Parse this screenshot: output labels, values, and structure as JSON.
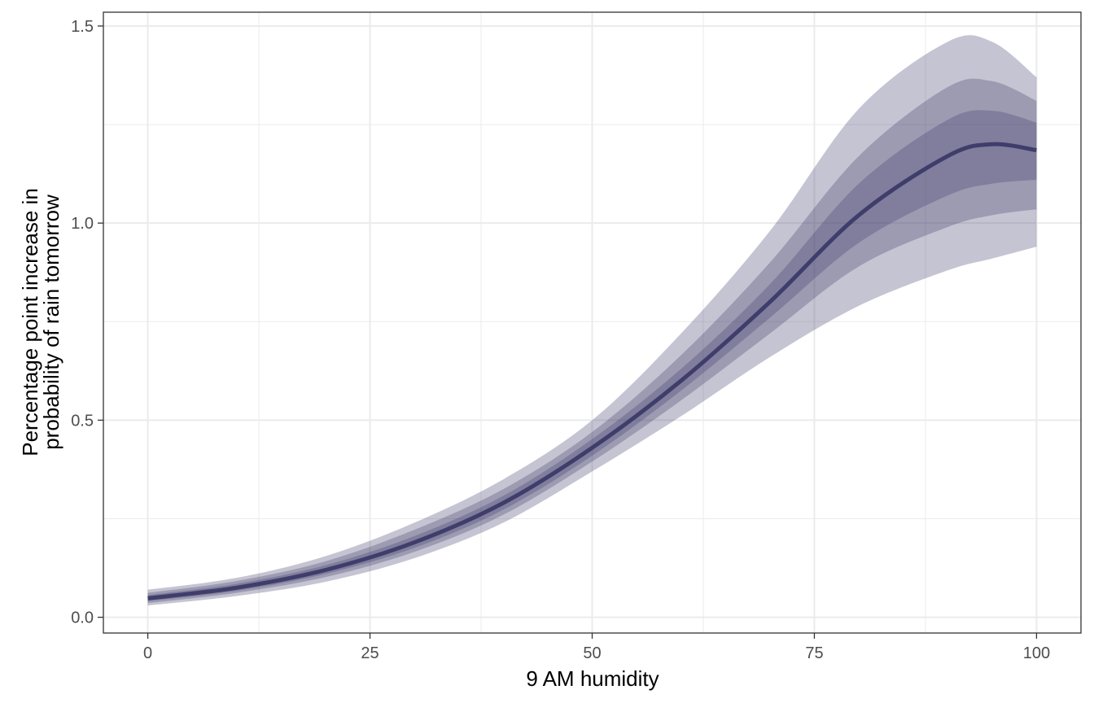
{
  "chart_data": {
    "type": "line",
    "title": "",
    "xlabel": "9 AM humidity",
    "ylabel_lines": [
      "Percentage point increase in",
      "probability of rain tomorrow"
    ],
    "xlim": [
      -5,
      105
    ],
    "ylim": [
      -0.04,
      1.535
    ],
    "x_ticks": [
      0,
      25,
      50,
      75,
      100
    ],
    "x_tick_labels": [
      "0",
      "25",
      "50",
      "75",
      "100"
    ],
    "y_ticks": [
      0,
      0.5,
      1,
      1.5
    ],
    "y_tick_labels": [
      "0.0",
      "0.5",
      "1.0",
      "1.5"
    ],
    "x_minor_ticks": [
      12.5,
      37.5,
      62.5,
      87.5
    ],
    "y_minor_ticks": [
      0.25,
      0.75,
      1.25
    ],
    "grid": true,
    "legend": "none",
    "colors": {
      "line": "#3f3d6b",
      "band": "#3f3d6b",
      "grid": "#ebebeb",
      "panel_border": "#333333"
    },
    "series": [
      {
        "x": [
          0,
          10,
          20,
          30,
          40,
          50,
          60,
          70,
          80,
          90,
          95,
          100
        ],
        "y": [
          0.048,
          0.075,
          0.12,
          0.19,
          0.29,
          0.43,
          0.6,
          0.8,
          1.02,
          1.17,
          1.2,
          1.185
        ],
        "bands": [
          {
            "level": "outer",
            "lower": [
              0.03,
              0.054,
              0.09,
              0.15,
              0.24,
              0.37,
              0.51,
              0.66,
              0.79,
              0.88,
              0.91,
              0.94
            ],
            "upper": [
              0.07,
              0.1,
              0.155,
              0.24,
              0.35,
              0.5,
              0.72,
              0.98,
              1.29,
              1.46,
              1.46,
              1.37
            ]
          },
          {
            "level": "middle",
            "lower": [
              0.036,
              0.062,
              0.102,
              0.166,
              0.26,
              0.395,
              0.55,
              0.72,
              0.89,
              0.99,
              1.02,
              1.035
            ],
            "upper": [
              0.062,
              0.092,
              0.142,
              0.222,
              0.325,
              0.47,
              0.665,
              0.9,
              1.17,
              1.345,
              1.36,
              1.31
            ]
          },
          {
            "level": "inner",
            "lower": [
              0.041,
              0.067,
              0.11,
              0.176,
              0.273,
              0.41,
              0.575,
              0.76,
              0.95,
              1.07,
              1.1,
              1.11
            ],
            "upper": [
              0.056,
              0.085,
              0.132,
              0.206,
              0.308,
              0.452,
              0.63,
              0.845,
              1.1,
              1.262,
              1.285,
              1.255
            ]
          }
        ]
      }
    ]
  }
}
